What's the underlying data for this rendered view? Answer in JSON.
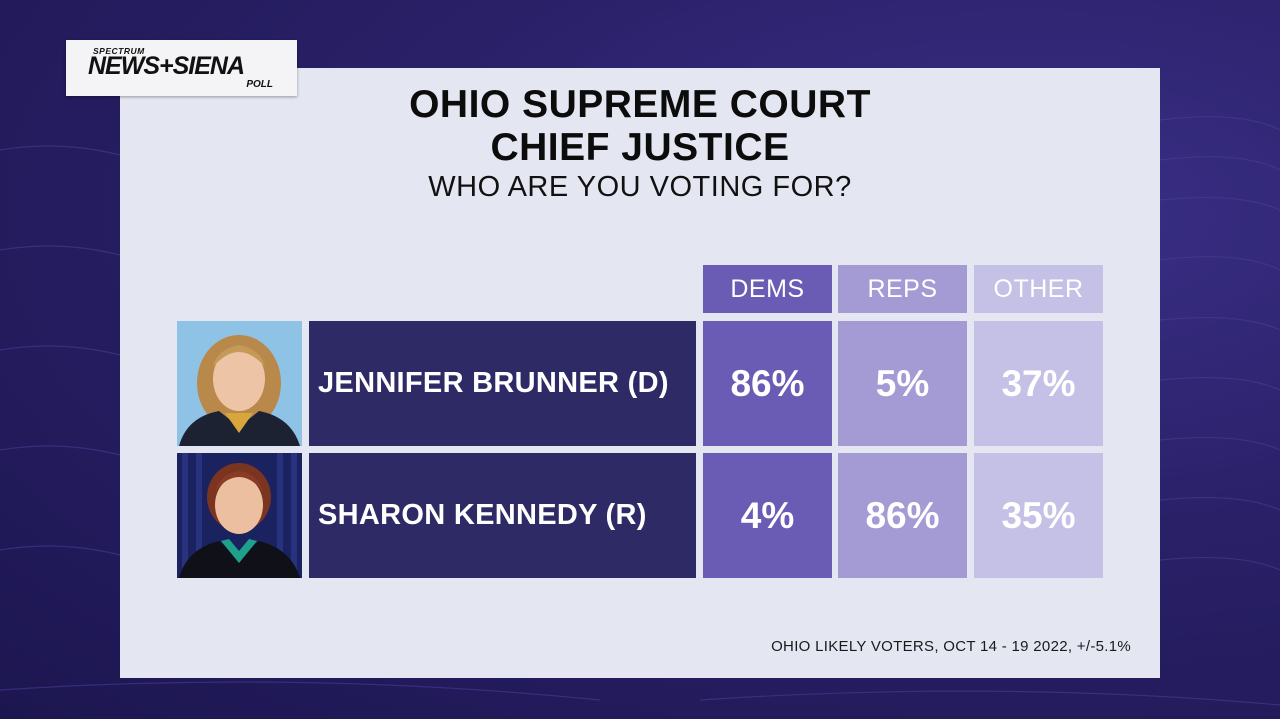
{
  "logo": {
    "small": "SPECTRUM",
    "main": "NEWS+SIENA",
    "poll": "POLL"
  },
  "title_line1": "OHIO SUPREME COURT",
  "title_line2": "CHIEF JUSTICE",
  "subtitle": "WHO ARE YOU VOTING FOR?",
  "footnote": "OHIO LIKELY VOTERS, OCT 14 - 19 2022, +/-5.1%",
  "colors": {
    "dems": "#6a5bb5",
    "reps": "#a49bd5",
    "other": "#c5c0e6",
    "name_cell": "#2d2a66",
    "panel": "#e4e6f1"
  },
  "chart_data": {
    "type": "table",
    "title": "OHIO SUPREME COURT CHIEF JUSTICE",
    "subtitle": "WHO ARE YOU VOTING FOR?",
    "columns": [
      "DEMS",
      "REPS",
      "OTHER"
    ],
    "rows": [
      {
        "name": "JENNIFER BRUNNER (D)",
        "values": [
          86,
          5,
          37
        ],
        "labels": [
          "86%",
          "5%",
          "37%"
        ]
      },
      {
        "name": "SHARON KENNEDY (R)",
        "values": [
          4,
          86,
          35
        ],
        "labels": [
          "4%",
          "86%",
          "35%"
        ]
      }
    ]
  }
}
